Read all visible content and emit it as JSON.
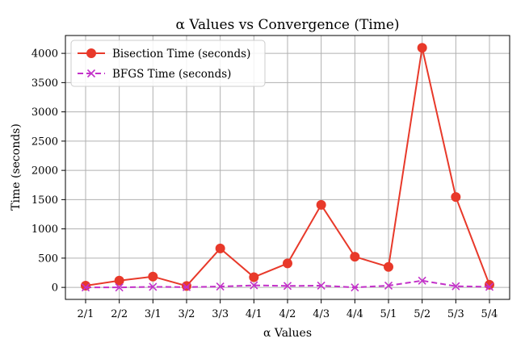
{
  "chart_data": {
    "type": "line",
    "title": "α Values vs Convergence (Time)",
    "xlabel": "α Values",
    "ylabel": "Time (seconds)",
    "categories": [
      "2/1",
      "2/2",
      "3/1",
      "3/2",
      "3/3",
      "4/1",
      "4/2",
      "4/3",
      "4/4",
      "5/1",
      "5/2",
      "5/3",
      "5/4"
    ],
    "yticks": [
      0,
      500,
      1000,
      1500,
      2000,
      2500,
      3000,
      3500,
      4000
    ],
    "ylim": [
      -205,
      4305
    ],
    "grid": true,
    "legend_position": "top-left",
    "series": [
      {
        "name": "Bisection Time (seconds)",
        "color": "#e8392a",
        "marker": "circle",
        "line_style": "solid",
        "values": [
          30,
          115,
          185,
          25,
          665,
          175,
          410,
          1410,
          525,
          350,
          4095,
          1545,
          45
        ]
      },
      {
        "name": "BFGS Time (seconds)",
        "color": "#c331c9",
        "marker": "x",
        "line_style": "dashed",
        "values": [
          0,
          0,
          10,
          5,
          15,
          35,
          25,
          30,
          0,
          30,
          115,
          20,
          10
        ]
      }
    ]
  }
}
